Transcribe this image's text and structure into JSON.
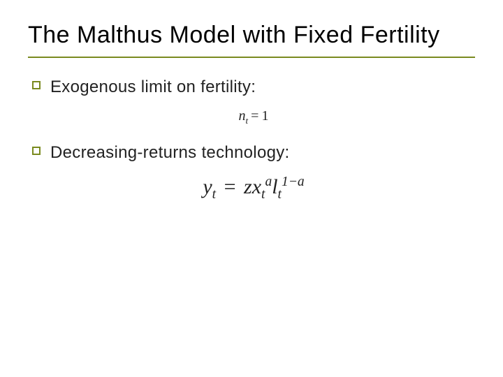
{
  "title": "The Malthus Model with Fixed Fertility",
  "rule_color": "#7a8a1f",
  "bullets": [
    {
      "text": "Exogenous limit on fertility:"
    },
    {
      "text": "Decreasing-returns technology:"
    }
  ],
  "formulas": {
    "fertility": {
      "lhs_var": "n",
      "lhs_sub": "t",
      "rhs": "1"
    },
    "production": {
      "lhs_var": "y",
      "lhs_sub": "t",
      "z": "z",
      "x": "x",
      "x_sub": "t",
      "x_sup": "a",
      "l": "l",
      "l_sub": "t",
      "l_sup": "1−a"
    }
  },
  "styling": {
    "title_fontsize": 34,
    "bullet_fontsize": 24,
    "formula1_fontsize": 20,
    "formula2_fontsize": 30,
    "bullet_marker_border": "#7a8a1f",
    "background": "#ffffff",
    "text_color": "#222222"
  }
}
